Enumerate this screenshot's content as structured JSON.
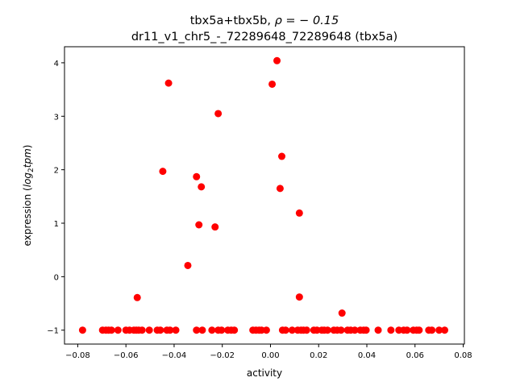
{
  "chart_data": {
    "type": "scatter",
    "title_line1_prefix": "tbx5a+tbx5b, ",
    "title_line1_rho": "ρ = − 0.15",
    "title_line2": "dr11_v1_chr5_-_72289648_72289648 (tbx5a)",
    "xlabel": "activity",
    "ylabel_prefix": "expression (",
    "ylabel_math": "log",
    "ylabel_sub": "2",
    "ylabel_math2": "tpm",
    "ylabel_suffix": ")",
    "xlim": [
      -0.0855,
      0.0805
    ],
    "ylim": [
      -1.26,
      4.3
    ],
    "xticks": [
      -0.08,
      -0.06,
      -0.04,
      -0.02,
      0.0,
      0.02,
      0.04,
      0.06,
      0.08
    ],
    "xtick_labels": [
      "−0.08",
      "−0.06",
      "−0.04",
      "−0.02",
      "0.00",
      "0.02",
      "0.04",
      "0.06",
      "0.08"
    ],
    "yticks": [
      -1,
      0,
      1,
      2,
      3,
      4
    ],
    "ytick_labels": [
      "−1",
      "0",
      "1",
      "2",
      "3",
      "4"
    ],
    "grid": false,
    "marker_color": "#ff0000",
    "series": [
      {
        "points": [
          [
            -0.078,
            -1.0
          ],
          [
            -0.0697,
            -1.0
          ],
          [
            -0.0683,
            -1.0
          ],
          [
            -0.0672,
            -1.0
          ],
          [
            -0.066,
            -1.0
          ],
          [
            -0.0633,
            -1.0
          ],
          [
            -0.06,
            -1.0
          ],
          [
            -0.0585,
            -1.0
          ],
          [
            -0.0567,
            -1.0
          ],
          [
            -0.0557,
            -1.0
          ],
          [
            -0.0547,
            -1.0
          ],
          [
            -0.0533,
            -1.0
          ],
          [
            -0.0503,
            -1.0
          ],
          [
            -0.047,
            -1.0
          ],
          [
            -0.0457,
            -1.0
          ],
          [
            -0.043,
            -1.0
          ],
          [
            -0.0417,
            -1.0
          ],
          [
            -0.0393,
            -1.0
          ],
          [
            -0.0307,
            -1.0
          ],
          [
            -0.0283,
            -1.0
          ],
          [
            -0.0243,
            -1.0
          ],
          [
            -0.0217,
            -1.0
          ],
          [
            -0.0203,
            -1.0
          ],
          [
            -0.0177,
            -1.0
          ],
          [
            -0.0163,
            -1.0
          ],
          [
            -0.015,
            -1.0
          ],
          [
            -0.0073,
            -1.0
          ],
          [
            -0.006,
            -1.0
          ],
          [
            -0.0047,
            -1.0
          ],
          [
            -0.0037,
            -1.0
          ],
          [
            -0.0017,
            -1.0
          ],
          [
            0.005,
            -1.0
          ],
          [
            0.0063,
            -1.0
          ],
          [
            0.009,
            -1.0
          ],
          [
            0.0113,
            -1.0
          ],
          [
            0.0127,
            -1.0
          ],
          [
            0.0137,
            -1.0
          ],
          [
            0.015,
            -1.0
          ],
          [
            0.018,
            -1.0
          ],
          [
            0.0193,
            -1.0
          ],
          [
            0.0213,
            -1.0
          ],
          [
            0.0223,
            -1.0
          ],
          [
            0.0237,
            -1.0
          ],
          [
            0.0263,
            -1.0
          ],
          [
            0.0277,
            -1.0
          ],
          [
            0.0293,
            -1.0
          ],
          [
            0.032,
            -1.0
          ],
          [
            0.0333,
            -1.0
          ],
          [
            0.035,
            -1.0
          ],
          [
            0.0373,
            -1.0
          ],
          [
            0.0387,
            -1.0
          ],
          [
            0.0397,
            -1.0
          ],
          [
            0.0447,
            -1.0
          ],
          [
            0.05,
            -1.0
          ],
          [
            0.0533,
            -1.0
          ],
          [
            0.0553,
            -1.0
          ],
          [
            0.0567,
            -1.0
          ],
          [
            0.0593,
            -1.0
          ],
          [
            0.0607,
            -1.0
          ],
          [
            0.0617,
            -1.0
          ],
          [
            0.0657,
            -1.0
          ],
          [
            0.067,
            -1.0
          ],
          [
            0.07,
            -1.0
          ],
          [
            0.0723,
            -1.0
          ],
          [
            -0.0423,
            3.62
          ],
          [
            0.0027,
            4.04
          ],
          [
            0.0007,
            3.6
          ],
          [
            -0.0217,
            3.05
          ],
          [
            0.0047,
            2.25
          ],
          [
            -0.0447,
            1.97
          ],
          [
            -0.0307,
            1.87
          ],
          [
            -0.0287,
            1.68
          ],
          [
            0.004,
            1.65
          ],
          [
            0.012,
            1.19
          ],
          [
            -0.0297,
            0.97
          ],
          [
            -0.023,
            0.93
          ],
          [
            -0.0343,
            0.21
          ],
          [
            -0.0553,
            -0.39
          ],
          [
            0.012,
            -0.38
          ],
          [
            0.0297,
            -0.68
          ]
        ]
      }
    ]
  }
}
